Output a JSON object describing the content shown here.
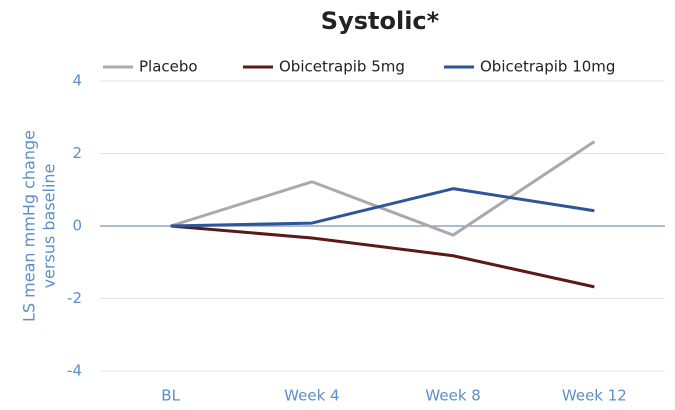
{
  "chart_data": {
    "type": "line",
    "title": "Systolic*",
    "y_label": [
      "LS mean mmHg change",
      "versus baseline"
    ],
    "categories": [
      "BL",
      "Week 4",
      "Week 8",
      "Week 12"
    ],
    "series": [
      {
        "name": "Placebo",
        "color": "#aaaaaa",
        "values": [
          0,
          1.22,
          -0.25,
          2.33
        ]
      },
      {
        "name": "Obicetrapib 5mg",
        "color": "#5a1a1a",
        "values": [
          0,
          -0.33,
          -0.82,
          -1.68
        ]
      },
      {
        "name": "Obicetrapib 10mg",
        "color": "#2e5597",
        "values": [
          0,
          0.08,
          1.03,
          0.42
        ]
      }
    ],
    "ylim": [
      -4,
      4
    ],
    "yticks": [
      -4,
      -2,
      0,
      2,
      4
    ],
    "grid": true,
    "legend": "top"
  }
}
